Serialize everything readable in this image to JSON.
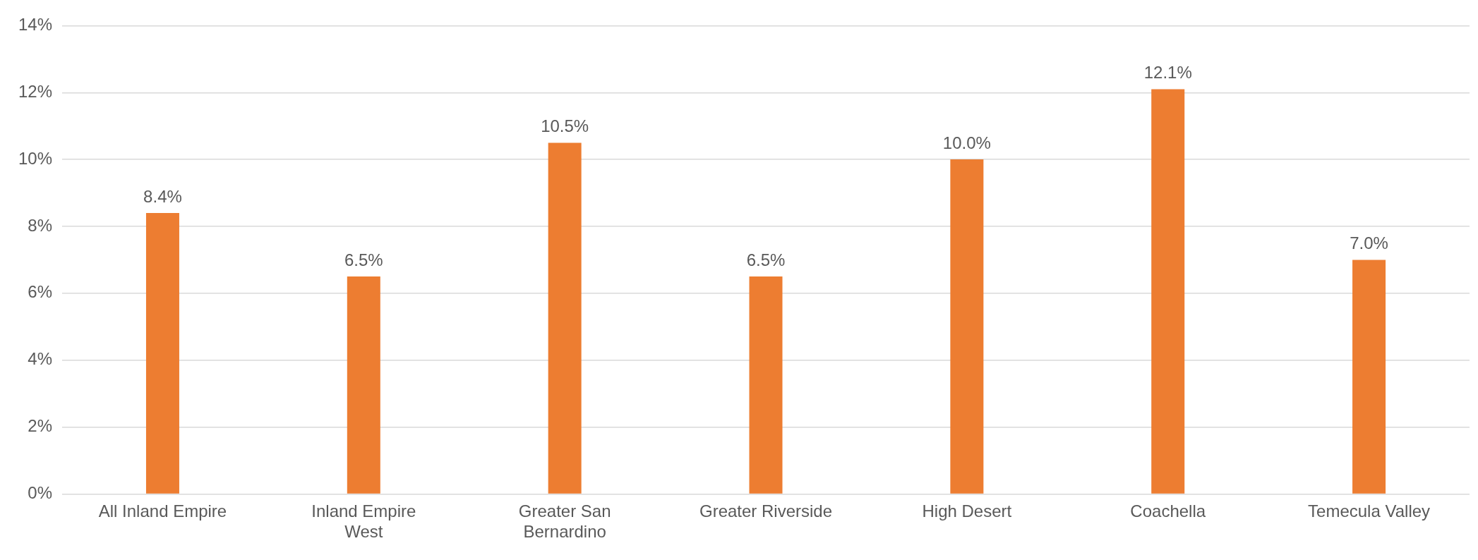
{
  "chart_data": {
    "type": "bar",
    "categories": [
      "All Inland Empire",
      "Inland Empire West",
      "Greater San Bernardino",
      "Greater Riverside",
      "High Desert",
      "Coachella",
      "Temecula Valley"
    ],
    "values": [
      8.4,
      6.5,
      10.5,
      6.5,
      10.0,
      12.1,
      7.0
    ],
    "value_labels": [
      "8.4%",
      "6.5%",
      "10.5%",
      "6.5%",
      "10.0%",
      "12.1%",
      "7.0%"
    ],
    "color": "#ed7d31",
    "ylim": [
      0,
      14
    ],
    "yticks": [
      {
        "value": 0,
        "label": "0%"
      },
      {
        "value": 2,
        "label": "2%"
      },
      {
        "value": 4,
        "label": "4%"
      },
      {
        "value": 6,
        "label": "6%"
      },
      {
        "value": 8,
        "label": "8%"
      },
      {
        "value": 10,
        "label": "10%"
      },
      {
        "value": 12,
        "label": "12%"
      },
      {
        "value": 14,
        "label": "14%"
      }
    ],
    "grid": "y",
    "legend": false
  }
}
